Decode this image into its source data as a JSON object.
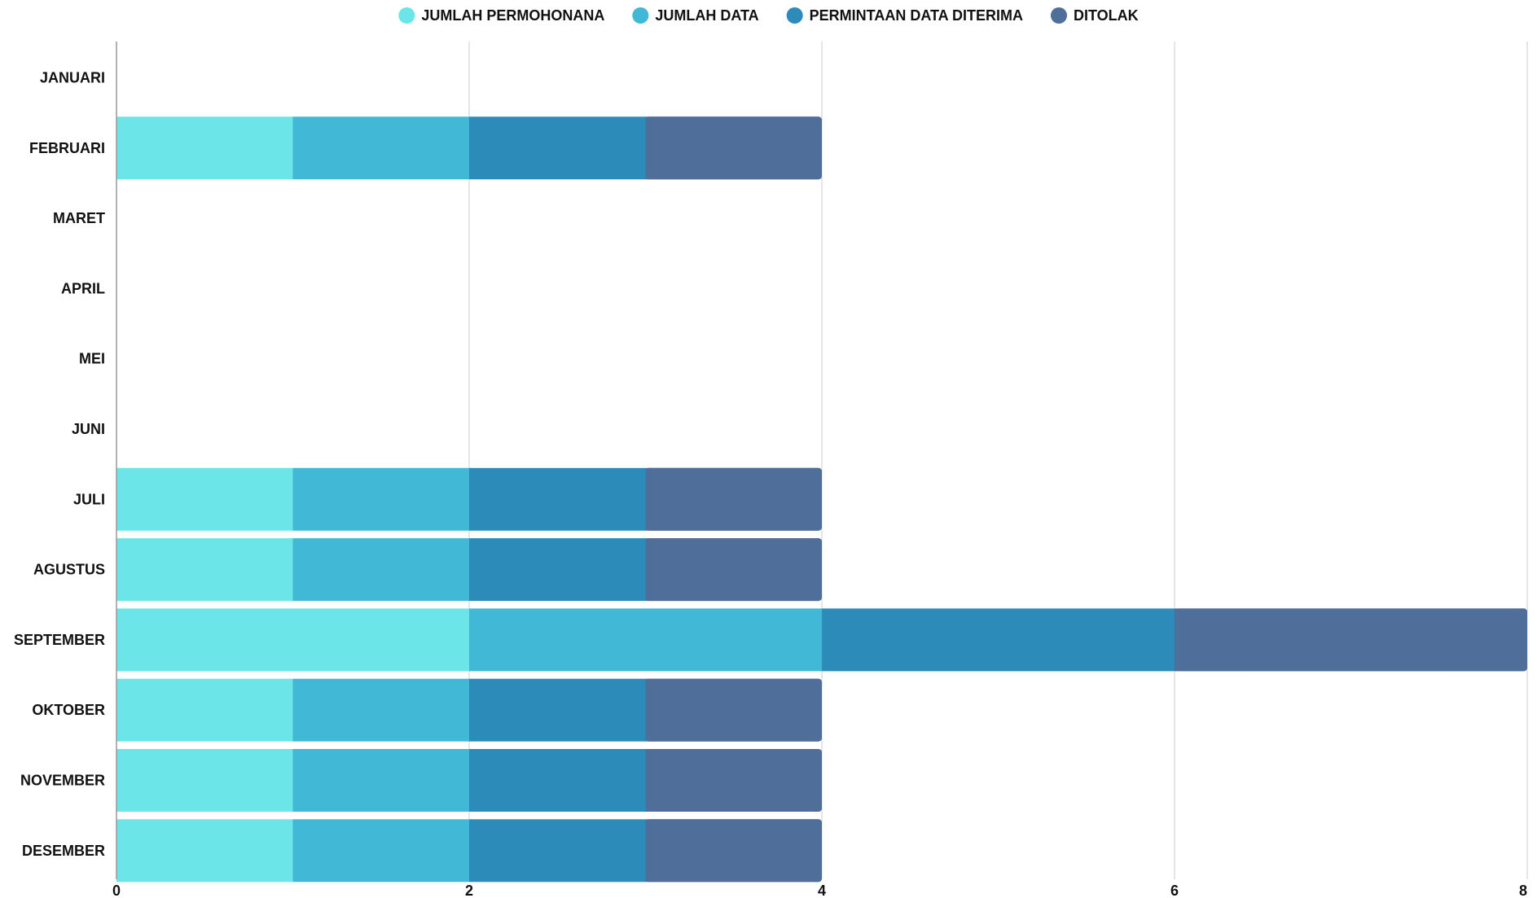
{
  "chart_data": {
    "type": "bar",
    "orientation": "horizontal",
    "stacked": true,
    "categories": [
      "JANUARI",
      "FEBRUARI",
      "MARET",
      "APRIL",
      "MEI",
      "JUNI",
      "JULI",
      "AGUSTUS",
      "SEPTEMBER",
      "OKTOBER",
      "NOVEMBER",
      "DESEMBER"
    ],
    "series": [
      {
        "name": "JUMLAH PERMOHONANA",
        "color": "#6ce5e8",
        "values": [
          0,
          1,
          0,
          0,
          0,
          0,
          1,
          1,
          2,
          1,
          1,
          1
        ]
      },
      {
        "name": "JUMLAH DATA",
        "color": "#41b8d5",
        "values": [
          0,
          1,
          0,
          0,
          0,
          0,
          1,
          1,
          2,
          1,
          1,
          1
        ]
      },
      {
        "name": "PERMINTAAN DATA DITERIMA",
        "color": "#2d8bba",
        "values": [
          0,
          1,
          0,
          0,
          0,
          0,
          1,
          1,
          2,
          1,
          1,
          1
        ]
      },
      {
        "name": "DITOLAK",
        "color": "#506e9a",
        "values": [
          0,
          1,
          0,
          0,
          0,
          0,
          1,
          1,
          2,
          1,
          1,
          1
        ]
      }
    ],
    "xlim": [
      0,
      8
    ],
    "xticks": [
      "0",
      "2",
      "4",
      "6",
      "8"
    ],
    "grid": true,
    "legend": "top-center",
    "title": "",
    "xlabel": "",
    "ylabel": ""
  }
}
